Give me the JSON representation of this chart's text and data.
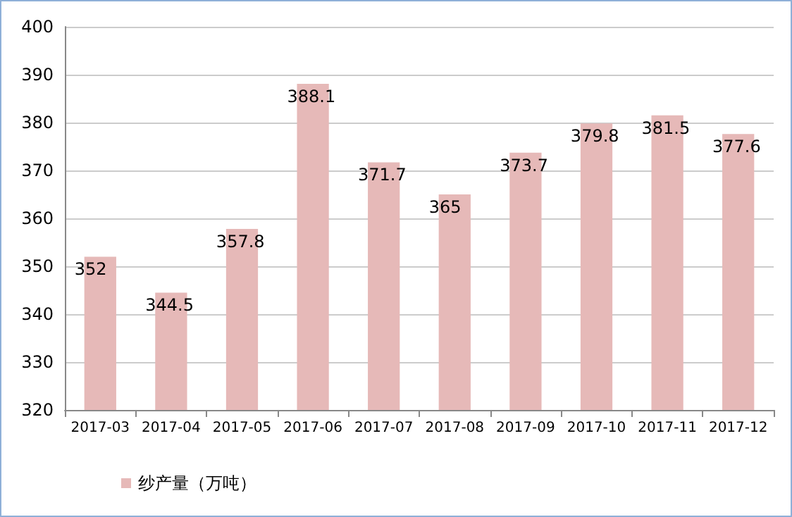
{
  "chart_data": {
    "type": "bar",
    "categories": [
      "2017-03",
      "2017-04",
      "2017-05",
      "2017-06",
      "2017-07",
      "2017-08",
      "2017-09",
      "2017-10",
      "2017-11",
      "2017-12"
    ],
    "series": [
      {
        "name": "纱产量（万吨）",
        "color": "#e6b9b8",
        "values": [
          352,
          344.5,
          357.8,
          388.1,
          371.7,
          365,
          373.7,
          379.8,
          381.5,
          377.6
        ]
      }
    ],
    "ylim": [
      320,
      400
    ],
    "yticks": [
      320,
      330,
      340,
      350,
      360,
      370,
      380,
      390,
      400
    ],
    "grid": "y",
    "legend": "bottom left",
    "data_labels": true
  }
}
